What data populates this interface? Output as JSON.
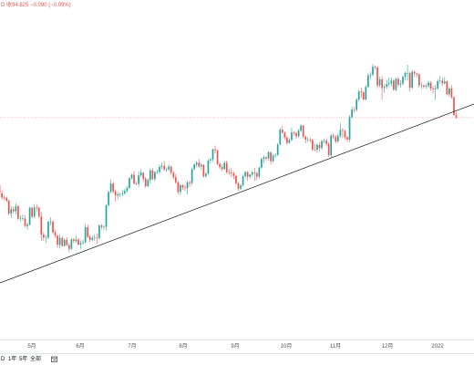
{
  "header": {
    "quote": "D 收94.825 −0.090 (−0.09%)"
  },
  "chart_data": {
    "type": "candlestick",
    "x_ticks": [
      "5月",
      "6月",
      "7月",
      "8月",
      "9月",
      "10月",
      "11月",
      "12月",
      "2022"
    ],
    "ylim": [
      86.1,
      99.45
    ],
    "grid": false,
    "up_color": "#26a69a",
    "down_color": "#ef5350",
    "trendline_color": "#131722",
    "candles": [
      [
        92.2,
        92.35,
        92.02,
        92.16
      ],
      [
        92.16,
        92.22,
        91.8,
        91.84
      ],
      [
        91.84,
        91.96,
        91.6,
        91.68
      ],
      [
        91.68,
        91.78,
        91.58,
        91.67
      ],
      [
        91.67,
        91.72,
        91.49,
        91.56
      ],
      [
        91.56,
        91.6,
        90.98,
        91.05
      ],
      [
        91.05,
        91.34,
        90.88,
        91.22
      ],
      [
        91.22,
        91.32,
        91.05,
        91.14
      ],
      [
        91.14,
        91.46,
        91.02,
        91.34
      ],
      [
        91.34,
        91.4,
        90.8,
        90.85
      ],
      [
        90.85,
        90.98,
        90.74,
        90.86
      ],
      [
        90.86,
        91.02,
        90.78,
        90.86
      ],
      [
        90.86,
        90.99,
        90.5,
        90.56
      ],
      [
        90.56,
        90.7,
        90.42,
        90.62
      ],
      [
        90.62,
        91.32,
        90.58,
        91.28
      ],
      [
        91.28,
        91.3,
        90.86,
        90.93
      ],
      [
        90.93,
        91.43,
        90.86,
        91.29
      ],
      [
        91.29,
        91.42,
        91.14,
        91.28
      ],
      [
        91.28,
        91.33,
        90.88,
        90.94
      ],
      [
        90.94,
        91.1,
        89.98,
        90.22
      ],
      [
        90.22,
        90.32,
        89.98,
        90.11
      ],
      [
        90.11,
        90.2,
        89.9,
        90.11
      ],
      [
        90.11,
        90.78,
        90.04,
        90.72
      ],
      [
        90.72,
        90.9,
        90.58,
        90.73
      ],
      [
        90.73,
        90.8,
        90.24,
        90.31
      ],
      [
        90.31,
        90.42,
        90.1,
        90.18
      ],
      [
        90.18,
        90.22,
        89.7,
        89.82
      ],
      [
        89.82,
        90.24,
        89.68,
        90.09
      ],
      [
        90.09,
        90.18,
        89.74,
        89.78
      ],
      [
        89.78,
        90.08,
        89.74,
        90.02
      ],
      [
        90.02,
        90.12,
        89.78,
        89.81
      ],
      [
        89.81,
        89.9,
        89.53,
        89.66
      ],
      [
        89.66,
        90.08,
        89.62,
        90.03
      ],
      [
        90.03,
        90.1,
        89.88,
        89.97
      ],
      [
        89.97,
        90.18,
        89.9,
        90.03
      ],
      [
        90.03,
        90.1,
        89.8,
        89.83
      ],
      [
        89.83,
        90.0,
        89.66,
        89.89
      ],
      [
        89.89,
        90.02,
        89.84,
        89.92
      ],
      [
        89.92,
        90.62,
        89.88,
        90.51
      ],
      [
        90.51,
        90.62,
        90.08,
        90.14
      ],
      [
        90.14,
        90.22,
        89.92,
        90.02
      ],
      [
        90.02,
        90.18,
        89.96,
        90.09
      ],
      [
        90.09,
        90.24,
        89.98,
        90.1
      ],
      [
        90.1,
        90.26,
        89.86,
        90.08
      ],
      [
        90.08,
        90.62,
        90.04,
        90.58
      ],
      [
        90.58,
        90.64,
        90.42,
        90.52
      ],
      [
        90.52,
        90.6,
        90.4,
        90.53
      ],
      [
        90.53,
        91.42,
        90.38,
        91.38
      ],
      [
        91.38,
        91.94,
        91.3,
        91.9
      ],
      [
        91.9,
        92.4,
        91.84,
        92.23
      ],
      [
        92.23,
        92.3,
        91.84,
        91.92
      ],
      [
        91.92,
        92.0,
        91.52,
        91.76
      ],
      [
        91.76,
        91.9,
        91.62,
        91.81
      ],
      [
        91.81,
        91.86,
        91.7,
        91.82
      ],
      [
        91.82,
        91.98,
        91.74,
        91.85
      ],
      [
        91.85,
        92.02,
        91.78,
        91.94
      ],
      [
        91.94,
        92.14,
        91.88,
        92.06
      ],
      [
        92.06,
        92.48,
        92.02,
        92.44
      ],
      [
        92.44,
        92.62,
        92.38,
        92.58
      ],
      [
        92.58,
        92.72,
        92.18,
        92.23
      ],
      [
        92.23,
        92.3,
        92.16,
        92.22
      ],
      [
        92.22,
        92.72,
        92.1,
        92.55
      ],
      [
        92.55,
        92.8,
        92.5,
        92.66
      ],
      [
        92.66,
        92.68,
        92.3,
        92.42
      ],
      [
        92.42,
        92.5,
        92.06,
        92.13
      ],
      [
        92.13,
        92.44,
        92.08,
        92.37
      ],
      [
        92.37,
        92.82,
        92.22,
        92.75
      ],
      [
        92.75,
        92.84,
        92.36,
        92.41
      ],
      [
        92.41,
        92.72,
        92.32,
        92.68
      ],
      [
        92.68,
        92.78,
        92.6,
        92.69
      ],
      [
        92.69,
        92.98,
        92.62,
        92.89
      ],
      [
        92.89,
        93.06,
        92.8,
        92.93
      ],
      [
        92.93,
        93.12,
        92.72,
        92.79
      ],
      [
        92.79,
        92.86,
        92.68,
        92.79
      ],
      [
        92.79,
        92.98,
        92.72,
        92.9
      ],
      [
        92.9,
        92.94,
        92.58,
        92.66
      ],
      [
        92.66,
        92.72,
        92.4,
        92.48
      ],
      [
        92.48,
        92.6,
        92.22,
        92.28
      ],
      [
        92.28,
        92.34,
        91.8,
        91.9
      ],
      [
        91.9,
        92.22,
        91.78,
        92.17
      ],
      [
        92.17,
        92.2,
        91.98,
        92.07
      ],
      [
        92.07,
        92.18,
        91.94,
        92.05
      ],
      [
        92.05,
        92.34,
        91.8,
        92.28
      ],
      [
        92.28,
        92.36,
        92.1,
        92.25
      ],
      [
        92.25,
        92.86,
        92.18,
        92.8
      ],
      [
        92.8,
        93.02,
        92.76,
        92.98
      ],
      [
        92.98,
        93.12,
        92.88,
        93.05
      ],
      [
        93.05,
        93.18,
        92.86,
        92.9
      ],
      [
        92.9,
        93.04,
        92.78,
        92.97
      ],
      [
        92.97,
        93.0,
        92.46,
        92.52
      ],
      [
        92.52,
        92.68,
        92.46,
        92.62
      ],
      [
        92.62,
        93.18,
        92.58,
        93.14
      ],
      [
        93.14,
        93.24,
        93.02,
        93.18
      ],
      [
        93.18,
        93.6,
        93.1,
        93.58
      ],
      [
        93.58,
        93.72,
        93.42,
        93.54
      ],
      [
        93.54,
        93.56,
        92.96,
        93.0
      ],
      [
        93.0,
        93.06,
        92.8,
        92.88
      ],
      [
        92.88,
        92.98,
        92.72,
        92.8
      ],
      [
        92.8,
        93.12,
        92.76,
        93.05
      ],
      [
        93.05,
        93.14,
        92.62,
        92.68
      ],
      [
        92.68,
        92.8,
        92.58,
        92.67
      ],
      [
        92.67,
        92.84,
        92.48,
        92.63
      ],
      [
        92.63,
        92.7,
        92.4,
        92.53
      ],
      [
        92.53,
        92.58,
        92.18,
        92.24
      ],
      [
        92.24,
        92.3,
        91.94,
        92.03
      ],
      [
        92.03,
        92.22,
        91.98,
        92.16
      ],
      [
        92.16,
        92.58,
        92.1,
        92.52
      ],
      [
        92.52,
        92.72,
        92.44,
        92.68
      ],
      [
        92.68,
        92.72,
        92.34,
        92.5
      ],
      [
        92.5,
        92.62,
        92.4,
        92.58
      ],
      [
        92.58,
        92.74,
        92.5,
        92.67
      ],
      [
        92.67,
        92.84,
        92.34,
        92.64
      ],
      [
        92.64,
        92.7,
        92.36,
        92.5
      ],
      [
        92.5,
        92.9,
        92.42,
        92.86
      ],
      [
        92.86,
        93.24,
        92.8,
        93.2
      ],
      [
        93.2,
        93.34,
        93.04,
        93.27
      ],
      [
        93.27,
        93.3,
        93.12,
        93.22
      ],
      [
        93.22,
        93.52,
        93.14,
        93.46
      ],
      [
        93.46,
        93.48,
        92.98,
        93.11
      ],
      [
        93.11,
        93.4,
        93.06,
        93.33
      ],
      [
        93.33,
        93.42,
        93.26,
        93.36
      ],
      [
        93.36,
        93.82,
        93.32,
        93.77
      ],
      [
        93.77,
        94.42,
        93.74,
        94.35
      ],
      [
        94.35,
        94.5,
        94.18,
        94.23
      ],
      [
        94.23,
        94.28,
        93.96,
        94.04
      ],
      [
        94.04,
        94.1,
        93.76,
        93.83
      ],
      [
        93.83,
        94.02,
        93.8,
        93.95
      ],
      [
        93.95,
        94.44,
        93.9,
        94.24
      ],
      [
        94.24,
        94.3,
        94.12,
        94.21
      ],
      [
        94.21,
        94.28,
        94.0,
        94.09
      ],
      [
        94.09,
        94.38,
        94.04,
        94.31
      ],
      [
        94.31,
        94.56,
        94.26,
        94.51
      ],
      [
        94.51,
        94.54,
        94.02,
        94.08
      ],
      [
        94.08,
        94.12,
        93.82,
        93.96
      ],
      [
        93.96,
        94.04,
        93.86,
        93.96
      ],
      [
        93.96,
        94.04,
        93.86,
        93.94
      ],
      [
        93.94,
        94.0,
        93.5,
        93.57
      ],
      [
        93.57,
        93.8,
        93.5,
        93.56
      ],
      [
        93.56,
        93.82,
        93.44,
        93.75
      ],
      [
        93.75,
        93.86,
        93.48,
        93.63
      ],
      [
        93.63,
        93.96,
        93.56,
        93.9
      ],
      [
        93.9,
        94.0,
        93.82,
        93.92
      ],
      [
        93.92,
        94.02,
        93.7,
        93.79
      ],
      [
        93.79,
        93.86,
        93.28,
        93.35
      ],
      [
        93.35,
        94.18,
        93.26,
        94.12
      ],
      [
        94.12,
        94.2,
        93.98,
        94.06
      ],
      [
        94.06,
        94.14,
        93.82,
        93.89
      ],
      [
        93.89,
        94.2,
        93.84,
        94.11
      ],
      [
        94.11,
        94.6,
        94.02,
        94.34
      ],
      [
        94.34,
        94.4,
        94.02,
        94.31
      ],
      [
        94.31,
        94.34,
        93.96,
        94.05
      ],
      [
        94.05,
        94.1,
        93.88,
        93.96
      ],
      [
        93.96,
        94.92,
        93.86,
        94.84
      ],
      [
        94.84,
        95.26,
        94.8,
        95.14
      ],
      [
        95.14,
        95.24,
        95.02,
        95.13
      ],
      [
        95.13,
        95.6,
        95.06,
        95.53
      ],
      [
        95.53,
        95.92,
        95.46,
        95.85
      ],
      [
        95.85,
        96.0,
        95.6,
        95.82
      ],
      [
        95.82,
        95.86,
        95.5,
        95.54
      ],
      [
        95.54,
        96.1,
        95.5,
        96.03
      ],
      [
        96.03,
        96.58,
        96.0,
        96.49
      ],
      [
        96.49,
        96.62,
        96.34,
        96.52
      ],
      [
        96.52,
        96.94,
        96.46,
        96.82
      ],
      [
        96.82,
        96.88,
        96.7,
        96.8
      ],
      [
        96.8,
        96.84,
        95.98,
        96.09
      ],
      [
        96.09,
        96.44,
        96.02,
        96.33
      ],
      [
        96.33,
        96.46,
        95.54,
        95.99
      ],
      [
        95.99,
        96.14,
        95.8,
        96.04
      ],
      [
        96.04,
        96.3,
        95.96,
        96.14
      ],
      [
        96.14,
        96.4,
        96.04,
        96.17
      ],
      [
        96.17,
        96.4,
        96.06,
        96.28
      ],
      [
        96.28,
        96.34,
        95.88,
        95.92
      ],
      [
        95.92,
        96.4,
        95.86,
        96.35
      ],
      [
        96.35,
        96.42,
        96.02,
        96.12
      ],
      [
        96.12,
        96.3,
        96.0,
        96.16
      ],
      [
        96.16,
        96.48,
        96.1,
        96.43
      ],
      [
        96.43,
        96.64,
        96.3,
        96.58
      ],
      [
        96.58,
        96.9,
        96.28,
        96.58
      ],
      [
        96.58,
        96.62,
        95.86,
        96.0
      ],
      [
        96.0,
        96.7,
        95.94,
        96.62
      ],
      [
        96.62,
        96.68,
        96.42,
        96.56
      ],
      [
        96.56,
        96.6,
        96.4,
        96.52
      ],
      [
        96.52,
        96.56,
        96.0,
        96.09
      ],
      [
        96.09,
        96.22,
        95.96,
        96.09
      ],
      [
        96.09,
        96.14,
        95.98,
        96.04
      ],
      [
        96.04,
        96.16,
        95.96,
        96.07
      ],
      [
        96.07,
        96.28,
        96.0,
        96.2
      ],
      [
        96.2,
        96.26,
        95.88,
        95.97
      ],
      [
        95.97,
        96.06,
        95.78,
        95.94
      ],
      [
        95.94,
        96.1,
        95.52,
        95.97
      ],
      [
        95.97,
        96.34,
        95.92,
        96.26
      ],
      [
        96.26,
        96.46,
        96.16,
        96.28
      ],
      [
        96.28,
        96.4,
        96.06,
        96.17
      ],
      [
        96.17,
        96.42,
        96.12,
        96.25
      ],
      [
        96.25,
        96.3,
        95.7,
        95.74
      ],
      [
        95.74,
        96.04,
        95.64,
        95.97
      ],
      [
        95.97,
        96.1,
        95.56,
        95.63
      ],
      [
        95.63,
        95.66,
        94.9,
        94.915
      ],
      [
        94.915,
        95.04,
        94.78,
        94.825
      ]
    ]
  },
  "range_bar": {
    "items": [
      "D",
      "1年",
      "5年",
      "全部"
    ],
    "goto_icon": "goto-date-icon"
  }
}
